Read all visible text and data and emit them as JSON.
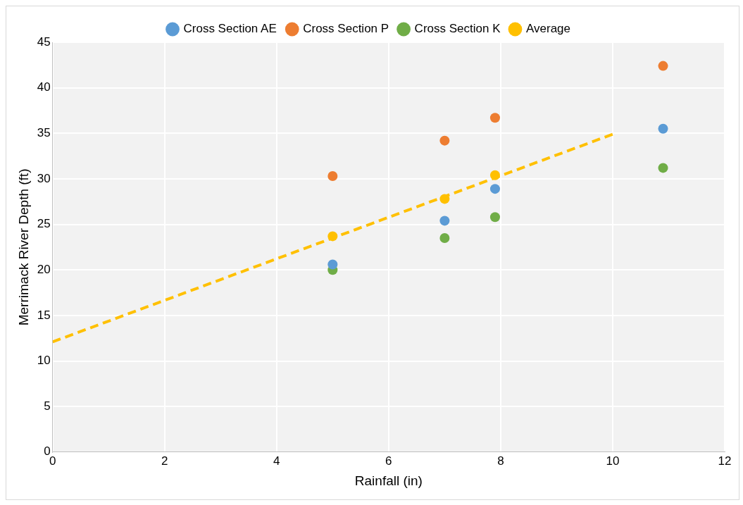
{
  "chart_data": {
    "type": "scatter",
    "xlabel": "Rainfall (in)",
    "ylabel": "Merrimack River Depth (ft)",
    "xlim": [
      0,
      12
    ],
    "xticks": [
      0,
      2,
      4,
      6,
      8,
      10,
      12
    ],
    "ylim": [
      0,
      45
    ],
    "yticks": [
      0,
      5,
      10,
      15,
      20,
      25,
      30,
      35,
      40,
      45
    ],
    "grid": true,
    "legend": "top",
    "marker": "circle",
    "series": [
      {
        "name": "Cross Section AE",
        "color": "#5b9bd5",
        "x": [
          5,
          7,
          7.9,
          10.9
        ],
        "values": [
          20.6,
          25.4,
          28.9,
          35.5
        ]
      },
      {
        "name": "Cross Section P",
        "color": "#ed7d31",
        "x": [
          5,
          7,
          7.9,
          10.9
        ],
        "values": [
          30.3,
          34.2,
          36.7,
          42.4
        ]
      },
      {
        "name": "Cross Section K",
        "color": "#70ad47",
        "x": [
          5,
          7,
          7.9,
          10.9
        ],
        "values": [
          20.0,
          23.5,
          25.8,
          31.2
        ]
      },
      {
        "name": "Average",
        "color": "#ffc000",
        "x": [
          5,
          7,
          7.9
        ],
        "values": [
          23.7,
          27.8,
          30.4
        ]
      },
      {
        "type": "line",
        "color": "#ffc000",
        "line_style": "dashed",
        "marker": "none",
        "x": [
          0,
          10
        ],
        "values": [
          12.1,
          34.9
        ]
      }
    ]
  }
}
